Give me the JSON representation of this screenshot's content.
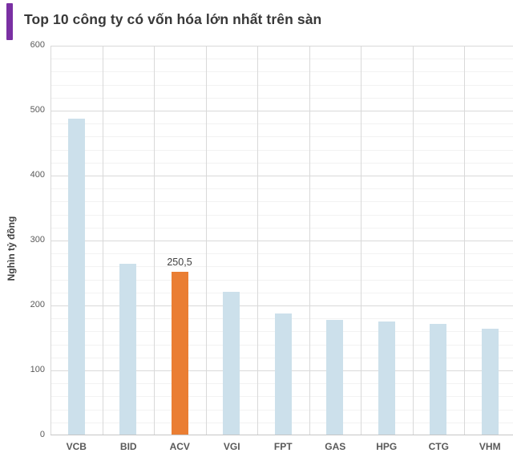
{
  "header": {
    "title": "Top 10 công ty có vốn hóa lớn nhất trên sàn",
    "accent_color": "#7a30a3"
  },
  "chart_data": {
    "type": "bar",
    "title": "Top 10 công ty có vốn hóa lớn nhất trên sàn",
    "xlabel": "",
    "ylabel": "Nghìn tỷ đồng",
    "categories": [
      "VCB",
      "BID",
      "ACV",
      "VGI",
      "FPT",
      "GAS",
      "HPG",
      "CTG",
      "VHM"
    ],
    "values": [
      487,
      263,
      250.5,
      220,
      186,
      177,
      174,
      170,
      163
    ],
    "data_labels": [
      null,
      null,
      "250,5",
      null,
      null,
      null,
      null,
      null,
      null
    ],
    "highlight_index": 2,
    "bar_color": "#cce0eb",
    "highlight_color": "#ea7e33",
    "ylim": [
      0,
      600
    ],
    "ytick_step": 100,
    "yticks": [
      "0",
      "100",
      "200",
      "300",
      "400",
      "500",
      "600"
    ],
    "minor_grid_step": 20,
    "grid": true,
    "legend": "none",
    "note_visible_categories": "10th category cut off at right edge of image"
  }
}
